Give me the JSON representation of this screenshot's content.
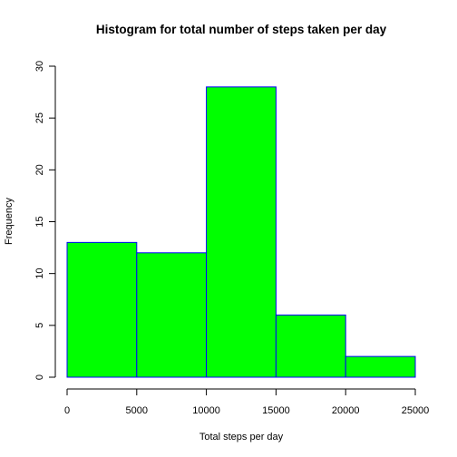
{
  "chart_data": {
    "type": "bar",
    "subtype": "histogram",
    "title": "Histogram for total number of steps taken per day",
    "xlabel": "Total steps per day",
    "ylabel": "Frequency",
    "bins": [
      {
        "from": 0,
        "to": 5000,
        "count": 13
      },
      {
        "from": 5000,
        "to": 10000,
        "count": 12
      },
      {
        "from": 10000,
        "to": 15000,
        "count": 28
      },
      {
        "from": 15000,
        "to": 20000,
        "count": 6
      },
      {
        "from": 20000,
        "to": 25000,
        "count": 2
      }
    ],
    "xlim": [
      0,
      25000
    ],
    "ylim": [
      0,
      30
    ],
    "x_ticks": [
      0,
      5000,
      10000,
      15000,
      20000,
      25000
    ],
    "x_tick_labels": [
      "0",
      "5000",
      "10000",
      "15000",
      "20000",
      "25000"
    ],
    "y_ticks": [
      0,
      5,
      10,
      15,
      20,
      25,
      30
    ],
    "y_tick_labels": [
      "0",
      "5",
      "10",
      "15",
      "20",
      "25",
      "30"
    ],
    "bar_fill_color": "#00ff00",
    "bar_border_color": "#0000ff",
    "grid": false,
    "legend": "none"
  }
}
